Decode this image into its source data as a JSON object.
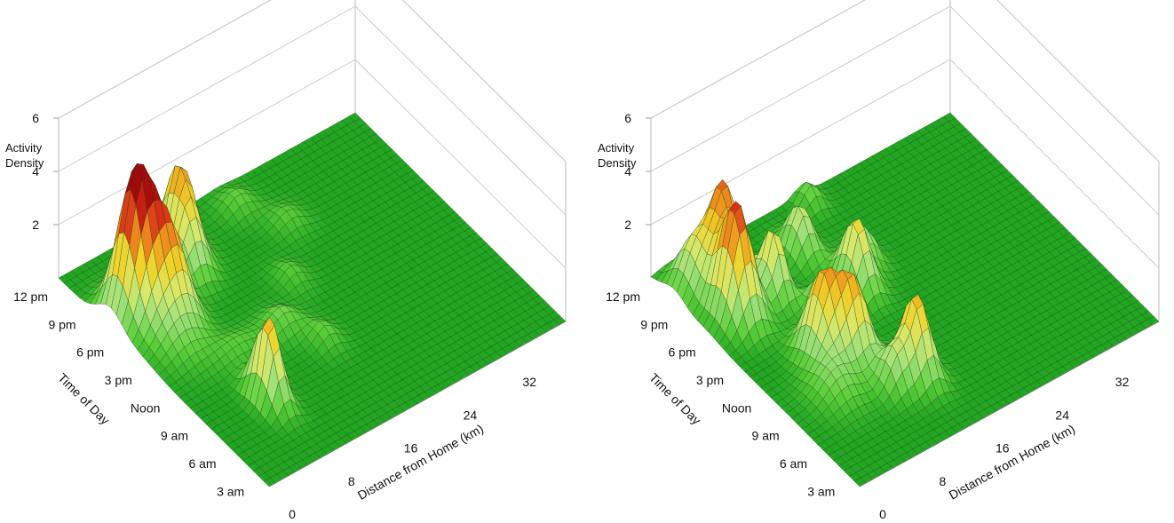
{
  "chart_data": [
    {
      "type": "surface3d",
      "zlabel": [
        "Activity",
        "Density"
      ],
      "xlabel": "Distance from Home (km)",
      "ylabel": "Time of Day",
      "z_ticks": [
        "2",
        "4",
        "6"
      ],
      "z_tick_values": [
        2,
        4,
        6
      ],
      "x_ticks": [
        "0",
        "8",
        "16",
        "24",
        "32"
      ],
      "x_tick_values": [
        0,
        8,
        16,
        24,
        32
      ],
      "y_ticks": [
        "3 am",
        "6 am",
        "9 am",
        "Noon",
        "3 pm",
        "6 pm",
        "9 pm",
        "12 pm"
      ],
      "y_tick_values": [
        3,
        6,
        9,
        12,
        15,
        18,
        21,
        24
      ],
      "xlim": [
        0,
        40
      ],
      "ylim": [
        1.5,
        24
      ],
      "zlim": [
        0,
        6
      ],
      "colormap": [
        "#22a622",
        "#5ccf3a",
        "#9fe07a",
        "#d8e86a",
        "#f0d22a",
        "#ee8a1c",
        "#d52818",
        "#a10a0a"
      ],
      "peaks": [
        {
          "x": 3.5,
          "t": 18.5,
          "z": 5.2,
          "sx": 1.8,
          "st": 1.3
        },
        {
          "x": 6.5,
          "t": 17.0,
          "z": 2.6,
          "sx": 1.5,
          "st": 1.4
        },
        {
          "x": 4.0,
          "t": 15.5,
          "z": 1.2,
          "sx": 2.0,
          "st": 1.8
        },
        {
          "x": 12.5,
          "t": 21.0,
          "z": 3.3,
          "sx": 1.4,
          "st": 1.2
        },
        {
          "x": 11.5,
          "t": 19.0,
          "z": 1.6,
          "sx": 1.4,
          "st": 1.0
        },
        {
          "x": 7.5,
          "t": 7.5,
          "z": 3.2,
          "sx": 1.0,
          "st": 1.2
        },
        {
          "x": 15.0,
          "t": 12.0,
          "z": 0.7,
          "sx": 1.6,
          "st": 1.0
        },
        {
          "x": 21.5,
          "t": 22.0,
          "z": 0.6,
          "sx": 1.5,
          "st": 1.0
        },
        {
          "x": 24.5,
          "t": 19.0,
          "z": 0.5,
          "sx": 1.5,
          "st": 1.0
        },
        {
          "x": 17.5,
          "t": 9.5,
          "z": 0.6,
          "sx": 1.2,
          "st": 1.0
        },
        {
          "x": 9.0,
          "t": 12.0,
          "z": 0.5,
          "sx": 2.5,
          "st": 1.0
        },
        {
          "x": 20.0,
          "t": 15.0,
          "z": 0.5,
          "sx": 1.2,
          "st": 1.0
        }
      ]
    },
    {
      "type": "surface3d",
      "zlabel": [
        "Activity",
        "Density"
      ],
      "xlabel": "Distance from Home (km)",
      "ylabel": "Time of Day",
      "z_ticks": [
        "2",
        "4",
        "6"
      ],
      "z_tick_values": [
        2,
        4,
        6
      ],
      "x_ticks": [
        "0",
        "8",
        "16",
        "24",
        "32"
      ],
      "x_tick_values": [
        0,
        8,
        16,
        24,
        32
      ],
      "y_ticks": [
        "3 am",
        "6 am",
        "9 am",
        "Noon",
        "3 pm",
        "6 pm",
        "9 pm",
        "12 pm"
      ],
      "y_tick_values": [
        3,
        6,
        9,
        12,
        15,
        18,
        21,
        24
      ],
      "xlim": [
        0,
        40
      ],
      "ylim": [
        1.5,
        24
      ],
      "zlim": [
        0,
        6
      ],
      "colormap": [
        "#22a622",
        "#5ccf3a",
        "#9fe07a",
        "#d8e86a",
        "#f0d22a",
        "#ee8a1c",
        "#d52818",
        "#a10a0a"
      ],
      "peaks": [
        {
          "x": 4.0,
          "t": 18.0,
          "z": 4.3,
          "sx": 1.5,
          "st": 1.3
        },
        {
          "x": 6.0,
          "t": 21.0,
          "z": 3.6,
          "sx": 1.5,
          "st": 1.1
        },
        {
          "x": 2.5,
          "t": 21.5,
          "z": 1.8,
          "sx": 1.5,
          "st": 1.2
        },
        {
          "x": 9.0,
          "t": 18.0,
          "z": 2.6,
          "sx": 1.0,
          "st": 1.0
        },
        {
          "x": 8.0,
          "t": 12.0,
          "z": 3.0,
          "sx": 1.5,
          "st": 1.2
        },
        {
          "x": 10.5,
          "t": 10.5,
          "z": 2.8,
          "sx": 1.4,
          "st": 1.1
        },
        {
          "x": 14.5,
          "t": 7.0,
          "z": 3.0,
          "sx": 1.2,
          "st": 1.2
        },
        {
          "x": 11.5,
          "t": 7.0,
          "z": 1.5,
          "sx": 1.3,
          "st": 1.0
        },
        {
          "x": 17.0,
          "t": 15.5,
          "z": 2.6,
          "sx": 1.2,
          "st": 1.2
        },
        {
          "x": 15.0,
          "t": 20.0,
          "z": 1.8,
          "sx": 1.2,
          "st": 1.1
        },
        {
          "x": 12.0,
          "t": 15.0,
          "z": 1.5,
          "sx": 1.2,
          "st": 1.0
        },
        {
          "x": 20.0,
          "t": 17.0,
          "z": 1.2,
          "sx": 1.0,
          "st": 1.0
        },
        {
          "x": 20.0,
          "t": 23.0,
          "z": 0.8,
          "sx": 1.0,
          "st": 0.8
        },
        {
          "x": 6.0,
          "t": 9.0,
          "z": 1.0,
          "sx": 2.0,
          "st": 1.5
        }
      ]
    }
  ]
}
